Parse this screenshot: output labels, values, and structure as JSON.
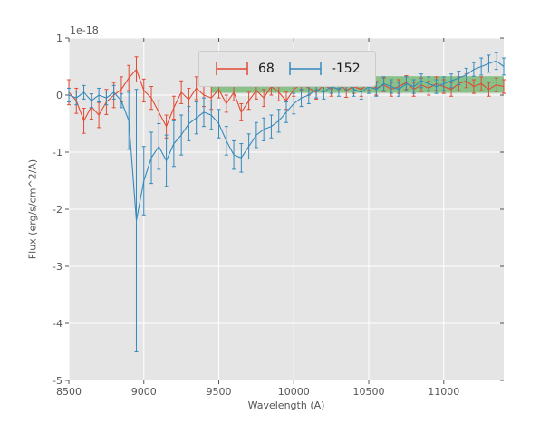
{
  "chart_data": {
    "type": "line",
    "subtype": "errorbar-spectrum",
    "title": "",
    "xlabel": "Wavelength (A)",
    "ylabel": "Flux (erg/s/cm^2/A)",
    "offset_text": "1e-18",
    "xlim": [
      8500,
      11400
    ],
    "ylim": [
      -5,
      1
    ],
    "xticks": [
      8500,
      9000,
      9500,
      10000,
      10500,
      11000
    ],
    "yticks": [
      -5,
      -4,
      -3,
      -2,
      -1,
      0,
      1
    ],
    "grid": true,
    "axes_background": "#e5e5e5",
    "grid_color": "#ffffff",
    "tick_color": "#555555",
    "legend_position": "upper center",
    "band": {
      "x0": 9450,
      "x1": 11400,
      "y0": 0.04,
      "y1": 0.33,
      "color": "#2ca02c",
      "opacity": 0.5
    },
    "legend": {
      "entries": [
        {
          "label": "68",
          "color": "#e24a33"
        },
        {
          "label": "-152",
          "color": "#348abd"
        }
      ]
    },
    "x": [
      8500,
      8550,
      8600,
      8650,
      8700,
      8750,
      8800,
      8850,
      8900,
      8950,
      9000,
      9050,
      9100,
      9150,
      9200,
      9250,
      9300,
      9350,
      9400,
      9450,
      9500,
      9550,
      9600,
      9650,
      9700,
      9750,
      9800,
      9850,
      9900,
      9950,
      10000,
      10050,
      10100,
      10150,
      10200,
      10250,
      10300,
      10350,
      10400,
      10450,
      10500,
      10550,
      10600,
      10650,
      10700,
      10750,
      10800,
      10850,
      10900,
      10950,
      11000,
      11050,
      11100,
      11150,
      11200,
      11250,
      11300,
      11350,
      11400
    ],
    "series": [
      {
        "name": "68",
        "color": "#e24a33",
        "y": [
          0.05,
          -0.1,
          -0.45,
          -0.2,
          -0.35,
          -0.12,
          0.0,
          0.1,
          0.3,
          0.45,
          0.08,
          -0.05,
          -0.3,
          -0.55,
          -0.22,
          0.05,
          -0.08,
          0.12,
          0.0,
          -0.05,
          0.1,
          -0.15,
          0.05,
          -0.3,
          -0.1,
          0.08,
          -0.05,
          0.15,
          0.05,
          -0.1,
          0.1,
          0.2,
          0.12,
          0.05,
          0.18,
          0.1,
          0.22,
          0.08,
          0.15,
          0.1,
          0.2,
          0.12,
          0.18,
          0.1,
          0.15,
          0.22,
          0.1,
          0.18,
          0.12,
          0.2,
          0.15,
          0.1,
          0.2,
          0.25,
          0.15,
          0.2,
          0.1,
          0.18,
          0.15
        ],
        "yerr": [
          0.22,
          0.22,
          0.22,
          0.22,
          0.22,
          0.22,
          0.22,
          0.22,
          0.22,
          0.22,
          0.2,
          0.2,
          0.2,
          0.2,
          0.2,
          0.2,
          0.2,
          0.2,
          0.2,
          0.2,
          0.15,
          0.15,
          0.15,
          0.15,
          0.15,
          0.15,
          0.15,
          0.15,
          0.15,
          0.15,
          0.12,
          0.12,
          0.12,
          0.12,
          0.12,
          0.12,
          0.12,
          0.12,
          0.12,
          0.12,
          0.12,
          0.12,
          0.12,
          0.12,
          0.12,
          0.12,
          0.12,
          0.12,
          0.12,
          0.12,
          0.12,
          0.12,
          0.12,
          0.12,
          0.12,
          0.12,
          0.12,
          0.12,
          0.12
        ]
      },
      {
        "name": "-152",
        "color": "#348abd",
        "y": [
          0.0,
          -0.05,
          0.05,
          -0.1,
          0.0,
          -0.05,
          0.05,
          -0.1,
          -0.45,
          -2.2,
          -1.5,
          -1.1,
          -0.9,
          -1.15,
          -0.85,
          -0.7,
          -0.5,
          -0.4,
          -0.3,
          -0.35,
          -0.5,
          -0.8,
          -1.05,
          -1.1,
          -0.9,
          -0.7,
          -0.6,
          -0.55,
          -0.45,
          -0.3,
          -0.15,
          -0.05,
          0.0,
          0.1,
          0.05,
          0.15,
          0.1,
          0.2,
          0.1,
          0.05,
          0.15,
          0.1,
          0.2,
          0.15,
          0.1,
          0.2,
          0.15,
          0.25,
          0.2,
          0.15,
          0.2,
          0.25,
          0.3,
          0.35,
          0.45,
          0.5,
          0.55,
          0.6,
          0.5
        ],
        "yerr": [
          0.12,
          0.12,
          0.12,
          0.12,
          0.12,
          0.12,
          0.12,
          0.12,
          0.5,
          2.3,
          0.6,
          0.45,
          0.4,
          0.45,
          0.4,
          0.35,
          0.3,
          0.28,
          0.25,
          0.25,
          0.25,
          0.25,
          0.25,
          0.25,
          0.22,
          0.22,
          0.2,
          0.2,
          0.2,
          0.18,
          0.18,
          0.15,
          0.15,
          0.15,
          0.12,
          0.12,
          0.12,
          0.12,
          0.12,
          0.12,
          0.12,
          0.12,
          0.12,
          0.12,
          0.12,
          0.12,
          0.12,
          0.12,
          0.12,
          0.12,
          0.12,
          0.12,
          0.12,
          0.12,
          0.12,
          0.15,
          0.15,
          0.15,
          0.15
        ]
      }
    ]
  }
}
